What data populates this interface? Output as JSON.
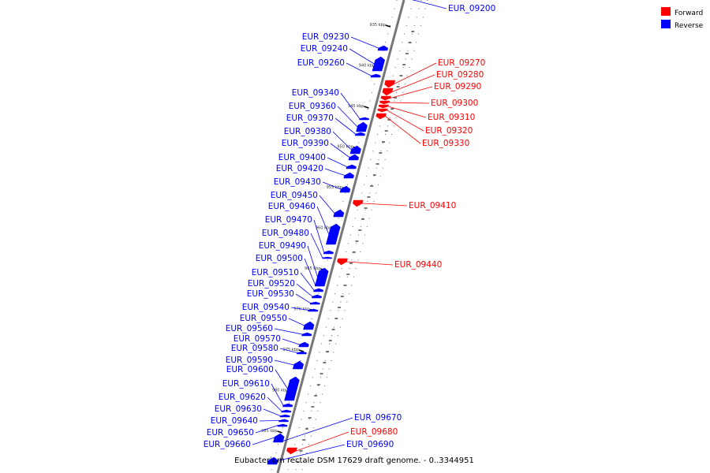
{
  "caption": "Eubacterium rectale DSM 17629 draft genome. - 0..3344951",
  "colors": {
    "forward": "#ff0000",
    "reverse": "#0000ff",
    "backbone": "#777777"
  },
  "legend": [
    {
      "label": "Forward",
      "color": "#ff0000"
    },
    {
      "label": "Reverse",
      "color": "#0000ff"
    }
  ],
  "ticks": [
    {
      "text": "935 kbp",
      "kbp": 935
    },
    {
      "text": "940 kbp",
      "kbp": 940
    },
    {
      "text": "945 kbp",
      "kbp": 945
    },
    {
      "text": "950 kbp",
      "kbp": 950
    },
    {
      "text": "955 kbp",
      "kbp": 955
    },
    {
      "text": "960 kbp",
      "kbp": 960
    },
    {
      "text": "965 kbp",
      "kbp": 965
    },
    {
      "text": "970 kbp",
      "kbp": 970
    },
    {
      "text": "975 kbp",
      "kbp": 975
    },
    {
      "text": "980 kbp",
      "kbp": 980
    },
    {
      "text": "985 kbp",
      "kbp": 985
    }
  ],
  "features": [
    {
      "id": "EUR_09200",
      "strand": "reverse"
    },
    {
      "id": "EUR_09230",
      "strand": "reverse"
    },
    {
      "id": "EUR_09240",
      "strand": "reverse"
    },
    {
      "id": "EUR_09260",
      "strand": "reverse"
    },
    {
      "id": "EUR_09270",
      "strand": "forward"
    },
    {
      "id": "EUR_09280",
      "strand": "forward"
    },
    {
      "id": "EUR_09290",
      "strand": "forward"
    },
    {
      "id": "EUR_09300",
      "strand": "forward"
    },
    {
      "id": "EUR_09310",
      "strand": "forward"
    },
    {
      "id": "EUR_09320",
      "strand": "forward"
    },
    {
      "id": "EUR_09330",
      "strand": "forward"
    },
    {
      "id": "EUR_09340",
      "strand": "reverse"
    },
    {
      "id": "EUR_09360",
      "strand": "reverse"
    },
    {
      "id": "EUR_09370",
      "strand": "reverse"
    },
    {
      "id": "EUR_09380",
      "strand": "reverse"
    },
    {
      "id": "EUR_09390",
      "strand": "reverse"
    },
    {
      "id": "EUR_09400",
      "strand": "reverse"
    },
    {
      "id": "EUR_09410",
      "strand": "forward"
    },
    {
      "id": "EUR_09420",
      "strand": "reverse"
    },
    {
      "id": "EUR_09430",
      "strand": "reverse"
    },
    {
      "id": "EUR_09440",
      "strand": "forward"
    },
    {
      "id": "EUR_09450",
      "strand": "reverse"
    },
    {
      "id": "EUR_09460",
      "strand": "reverse"
    },
    {
      "id": "EUR_09470",
      "strand": "reverse"
    },
    {
      "id": "EUR_09480",
      "strand": "reverse"
    },
    {
      "id": "EUR_09490",
      "strand": "reverse"
    },
    {
      "id": "EUR_09500",
      "strand": "reverse"
    },
    {
      "id": "EUR_09510",
      "strand": "reverse"
    },
    {
      "id": "EUR_09520",
      "strand": "reverse"
    },
    {
      "id": "EUR_09530",
      "strand": "reverse"
    },
    {
      "id": "EUR_09540",
      "strand": "reverse"
    },
    {
      "id": "EUR_09550",
      "strand": "reverse"
    },
    {
      "id": "EUR_09560",
      "strand": "reverse"
    },
    {
      "id": "EUR_09570",
      "strand": "reverse"
    },
    {
      "id": "EUR_09580",
      "strand": "reverse"
    },
    {
      "id": "EUR_09590",
      "strand": "reverse"
    },
    {
      "id": "EUR_09600",
      "strand": "reverse"
    },
    {
      "id": "EUR_09610",
      "strand": "reverse"
    },
    {
      "id": "EUR_09620",
      "strand": "reverse"
    },
    {
      "id": "EUR_09630",
      "strand": "reverse"
    },
    {
      "id": "EUR_09640",
      "strand": "reverse"
    },
    {
      "id": "EUR_09650",
      "strand": "reverse"
    },
    {
      "id": "EUR_09660",
      "strand": "reverse"
    },
    {
      "id": "EUR_09670",
      "strand": "reverse"
    },
    {
      "id": "EUR_09680",
      "strand": "forward"
    },
    {
      "id": "EUR_09690",
      "strand": "reverse"
    }
  ]
}
